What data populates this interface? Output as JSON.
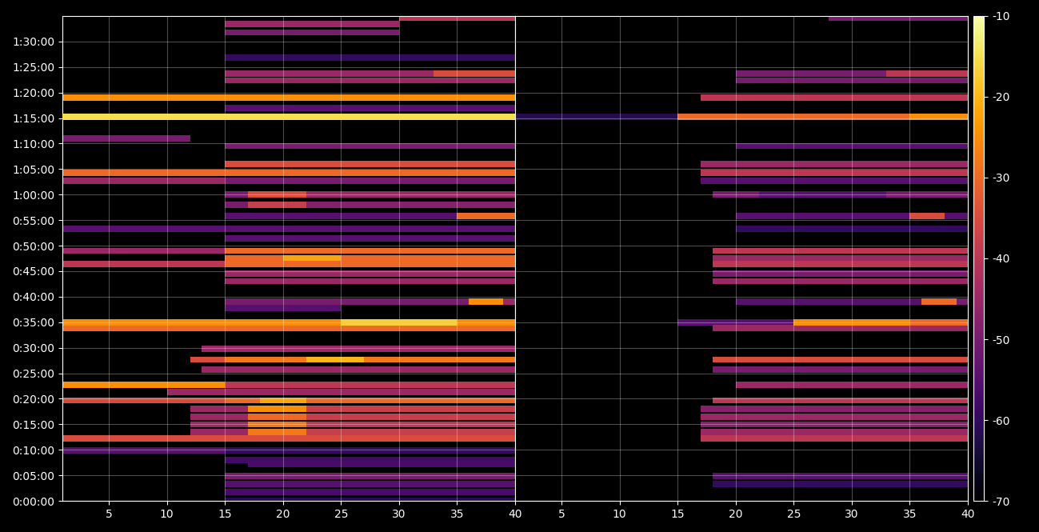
{
  "chart_data": {
    "type": "heatmap",
    "color": "inferno",
    "grid": true,
    "ylim": [
      0,
      5700
    ],
    "yticks": [
      {
        "value": 0,
        "label": "0:00:00"
      },
      {
        "value": 300,
        "label": "0:05:00"
      },
      {
        "value": 600,
        "label": "0:10:00"
      },
      {
        "value": 900,
        "label": "0:15:00"
      },
      {
        "value": 1200,
        "label": "0:20:00"
      },
      {
        "value": 1500,
        "label": "0:25:00"
      },
      {
        "value": 1800,
        "label": "0:30:00"
      },
      {
        "value": 2100,
        "label": "0:35:00"
      },
      {
        "value": 2400,
        "label": "0:40:00"
      },
      {
        "value": 2700,
        "label": "0:45:00"
      },
      {
        "value": 3000,
        "label": "0:50:00"
      },
      {
        "value": 3300,
        "label": "0:55:00"
      },
      {
        "value": 3600,
        "label": "1:00:00"
      },
      {
        "value": 3900,
        "label": "1:05:00"
      },
      {
        "value": 4200,
        "label": "1:10:00"
      },
      {
        "value": 4500,
        "label": "1:15:00"
      },
      {
        "value": 4800,
        "label": "1:20:00"
      },
      {
        "value": 5100,
        "label": "1:25:00"
      },
      {
        "value": 5400,
        "label": "1:30:00"
      }
    ],
    "colorbar": {
      "range": [
        -70,
        -10
      ],
      "ticks": [
        -70,
        -60,
        -50,
        -40,
        -30,
        -20,
        -10
      ]
    },
    "panels": [
      {
        "xlim": [
          1,
          40
        ],
        "xticks": [
          5,
          10,
          15,
          20,
          25,
          30,
          35,
          40
        ],
        "rows": [
          {
            "time": 0,
            "cells": [
              [
                15,
                40,
                -62
              ]
            ]
          },
          {
            "time": 102,
            "cells": [
              [
                15,
                40,
                -57
              ]
            ]
          },
          {
            "time": 198,
            "cells": [
              [
                15,
                40,
                -55
              ]
            ]
          },
          {
            "time": 294,
            "cells": [
              [
                15,
                40,
                -50
              ]
            ]
          },
          {
            "time": 432,
            "cells": [
              [
                17,
                40,
                -57
              ]
            ]
          },
          {
            "time": 480,
            "cells": [
              [
                15,
                40,
                -58
              ]
            ]
          },
          {
            "time": 594,
            "cells": [
              [
                1,
                15,
                -55
              ],
              [
                15,
                40,
                -60
              ]
            ]
          },
          {
            "time": 732,
            "cells": [
              [
                1,
                15,
                -35
              ],
              [
                15,
                40,
                -35
              ]
            ]
          },
          {
            "time": 810,
            "cells": [
              [
                12,
                17,
                -45
              ],
              [
                17,
                22,
                -28
              ],
              [
                22,
                40,
                -38
              ]
            ]
          },
          {
            "time": 900,
            "cells": [
              [
                12,
                17,
                -45
              ],
              [
                17,
                22,
                -28
              ],
              [
                22,
                40,
                -40
              ]
            ]
          },
          {
            "time": 990,
            "cells": [
              [
                12,
                17,
                -45
              ],
              [
                17,
                22,
                -30
              ],
              [
                22,
                40,
                -38
              ]
            ]
          },
          {
            "time": 1080,
            "cells": [
              [
                12,
                17,
                -45
              ],
              [
                17,
                22,
                -25
              ],
              [
                22,
                40,
                -38
              ]
            ]
          },
          {
            "time": 1182,
            "cells": [
              [
                1,
                15,
                -35
              ],
              [
                15,
                18,
                -30
              ],
              [
                18,
                22,
                -22
              ],
              [
                22,
                40,
                -30
              ]
            ]
          },
          {
            "time": 1278,
            "cells": [
              [
                10,
                40,
                -45
              ]
            ]
          },
          {
            "time": 1362,
            "cells": [
              [
                1,
                15,
                -25
              ],
              [
                15,
                40,
                -40
              ]
            ]
          },
          {
            "time": 1542,
            "cells": [
              [
                13,
                40,
                -45
              ]
            ]
          },
          {
            "time": 1662,
            "cells": [
              [
                12,
                15,
                -35
              ],
              [
                15,
                22,
                -28
              ],
              [
                22,
                27,
                -20
              ],
              [
                27,
                40,
                -28
              ]
            ]
          },
          {
            "time": 1788,
            "cells": [
              [
                13,
                40,
                -45
              ]
            ]
          },
          {
            "time": 2034,
            "cells": [
              [
                1,
                40,
                -30
              ]
            ]
          },
          {
            "time": 2100,
            "cells": [
              [
                1,
                25,
                -25
              ],
              [
                25,
                35,
                -17
              ],
              [
                35,
                40,
                -25
              ]
            ]
          },
          {
            "time": 2268,
            "cells": [
              [
                15,
                25,
                -55
              ]
            ]
          },
          {
            "time": 2340,
            "cells": [
              [
                15,
                36,
                -50
              ],
              [
                36,
                39,
                -25
              ],
              [
                39,
                40,
                -45
              ]
            ]
          },
          {
            "time": 2580,
            "cells": [
              [
                15,
                40,
                -45
              ]
            ]
          },
          {
            "time": 2670,
            "cells": [
              [
                15,
                40,
                -45
              ]
            ]
          },
          {
            "time": 2784,
            "cells": [
              [
                1,
                15,
                -40
              ],
              [
                15,
                40,
                -30
              ]
            ]
          },
          {
            "time": 2856,
            "cells": [
              [
                15,
                20,
                -30
              ],
              [
                20,
                25,
                -22
              ],
              [
                25,
                40,
                -30
              ]
            ]
          },
          {
            "time": 2940,
            "cells": [
              [
                1,
                15,
                -45
              ],
              [
                15,
                40,
                -30
              ]
            ]
          },
          {
            "time": 3084,
            "cells": [
              [
                15,
                40,
                -55
              ]
            ]
          },
          {
            "time": 3198,
            "cells": [
              [
                1,
                40,
                -55
              ]
            ]
          },
          {
            "time": 3348,
            "cells": [
              [
                15,
                35,
                -55
              ],
              [
                35,
                40,
                -30
              ]
            ]
          },
          {
            "time": 3480,
            "cells": [
              [
                15,
                17,
                -50
              ],
              [
                17,
                22,
                -38
              ],
              [
                22,
                40,
                -48
              ]
            ]
          },
          {
            "time": 3600,
            "cells": [
              [
                15,
                17,
                -50
              ],
              [
                17,
                22,
                -35
              ],
              [
                22,
                40,
                -45
              ]
            ]
          },
          {
            "time": 3762,
            "cells": [
              [
                1,
                15,
                -45
              ],
              [
                15,
                40,
                -50
              ]
            ]
          },
          {
            "time": 3858,
            "cells": [
              [
                1,
                40,
                -30
              ]
            ]
          },
          {
            "time": 3960,
            "cells": [
              [
                15,
                40,
                -35
              ]
            ]
          },
          {
            "time": 4170,
            "cells": [
              [
                15,
                40,
                -50
              ]
            ]
          },
          {
            "time": 4260,
            "cells": [
              [
                1,
                12,
                -50
              ]
            ]
          },
          {
            "time": 4512,
            "cells": [
              [
                1,
                40,
                -15
              ]
            ]
          },
          {
            "time": 4620,
            "cells": [
              [
                15,
                40,
                -55
              ]
            ]
          },
          {
            "time": 4740,
            "cells": [
              [
                1,
                40,
                -25
              ]
            ]
          },
          {
            "time": 4944,
            "cells": [
              [
                15,
                40,
                -45
              ]
            ]
          },
          {
            "time": 5022,
            "cells": [
              [
                15,
                33,
                -45
              ],
              [
                33,
                40,
                -35
              ]
            ]
          },
          {
            "time": 5208,
            "cells": [
              [
                15,
                40,
                -60
              ]
            ]
          },
          {
            "time": 5508,
            "cells": [
              [
                15,
                30,
                -50
              ]
            ]
          },
          {
            "time": 5604,
            "cells": [
              [
                15,
                30,
                -45
              ]
            ]
          },
          {
            "time": 5682,
            "cells": [
              [
                30,
                40,
                -40
              ]
            ]
          }
        ]
      },
      {
        "xlim": [
          1,
          40
        ],
        "xticks": [
          5,
          10,
          15,
          20,
          25,
          30,
          35,
          40
        ],
        "tick_labels": "x",
        "rows": [
          {
            "time": 198,
            "cells": [
              [
                18,
                40,
                -60
              ]
            ]
          },
          {
            "time": 294,
            "cells": [
              [
                18,
                40,
                -55
              ]
            ]
          },
          {
            "time": 732,
            "cells": [
              [
                17,
                40,
                -40
              ]
            ]
          },
          {
            "time": 810,
            "cells": [
              [
                17,
                40,
                -45
              ]
            ]
          },
          {
            "time": 900,
            "cells": [
              [
                17,
                40,
                -48
              ]
            ]
          },
          {
            "time": 990,
            "cells": [
              [
                17,
                40,
                -45
              ]
            ]
          },
          {
            "time": 1080,
            "cells": [
              [
                17,
                40,
                -48
              ]
            ]
          },
          {
            "time": 1182,
            "cells": [
              [
                18,
                40,
                -40
              ]
            ]
          },
          {
            "time": 1362,
            "cells": [
              [
                20,
                40,
                -45
              ]
            ]
          },
          {
            "time": 1542,
            "cells": [
              [
                18,
                40,
                -50
              ]
            ]
          },
          {
            "time": 1662,
            "cells": [
              [
                18,
                40,
                -35
              ]
            ]
          },
          {
            "time": 2034,
            "cells": [
              [
                18,
                40,
                -45
              ]
            ]
          },
          {
            "time": 2100,
            "cells": [
              [
                15,
                25,
                -55
              ],
              [
                25,
                35,
                -25
              ],
              [
                35,
                40,
                -30
              ]
            ]
          },
          {
            "time": 2340,
            "cells": [
              [
                20,
                36,
                -55
              ],
              [
                36,
                39,
                -30
              ],
              [
                39,
                40,
                -50
              ]
            ]
          },
          {
            "time": 2580,
            "cells": [
              [
                18,
                40,
                -45
              ]
            ]
          },
          {
            "time": 2670,
            "cells": [
              [
                18,
                40,
                -50
              ]
            ]
          },
          {
            "time": 2784,
            "cells": [
              [
                18,
                40,
                -40
              ]
            ]
          },
          {
            "time": 2856,
            "cells": [
              [
                18,
                40,
                -45
              ]
            ]
          },
          {
            "time": 2940,
            "cells": [
              [
                18,
                40,
                -40
              ]
            ]
          },
          {
            "time": 3198,
            "cells": [
              [
                20,
                40,
                -60
              ]
            ]
          },
          {
            "time": 3348,
            "cells": [
              [
                20,
                35,
                -55
              ],
              [
                35,
                38,
                -35
              ],
              [
                38,
                40,
                -55
              ]
            ]
          },
          {
            "time": 3600,
            "cells": [
              [
                18,
                22,
                -50
              ],
              [
                22,
                33,
                -55
              ],
              [
                33,
                40,
                -50
              ]
            ]
          },
          {
            "time": 3762,
            "cells": [
              [
                17,
                40,
                -55
              ]
            ]
          },
          {
            "time": 3858,
            "cells": [
              [
                17,
                40,
                -40
              ]
            ]
          },
          {
            "time": 3960,
            "cells": [
              [
                17,
                40,
                -45
              ]
            ]
          },
          {
            "time": 4170,
            "cells": [
              [
                20,
                40,
                -55
              ]
            ]
          },
          {
            "time": 4512,
            "cells": [
              [
                1,
                15,
                -62
              ],
              [
                15,
                35,
                -30
              ],
              [
                35,
                40,
                -25
              ]
            ]
          },
          {
            "time": 4740,
            "cells": [
              [
                17,
                40,
                -40
              ]
            ]
          },
          {
            "time": 4944,
            "cells": [
              [
                20,
                40,
                -50
              ]
            ]
          },
          {
            "time": 5022,
            "cells": [
              [
                20,
                33,
                -50
              ],
              [
                33,
                40,
                -40
              ]
            ]
          },
          {
            "time": 5682,
            "cells": [
              [
                28,
                40,
                -50
              ]
            ]
          }
        ]
      }
    ]
  }
}
